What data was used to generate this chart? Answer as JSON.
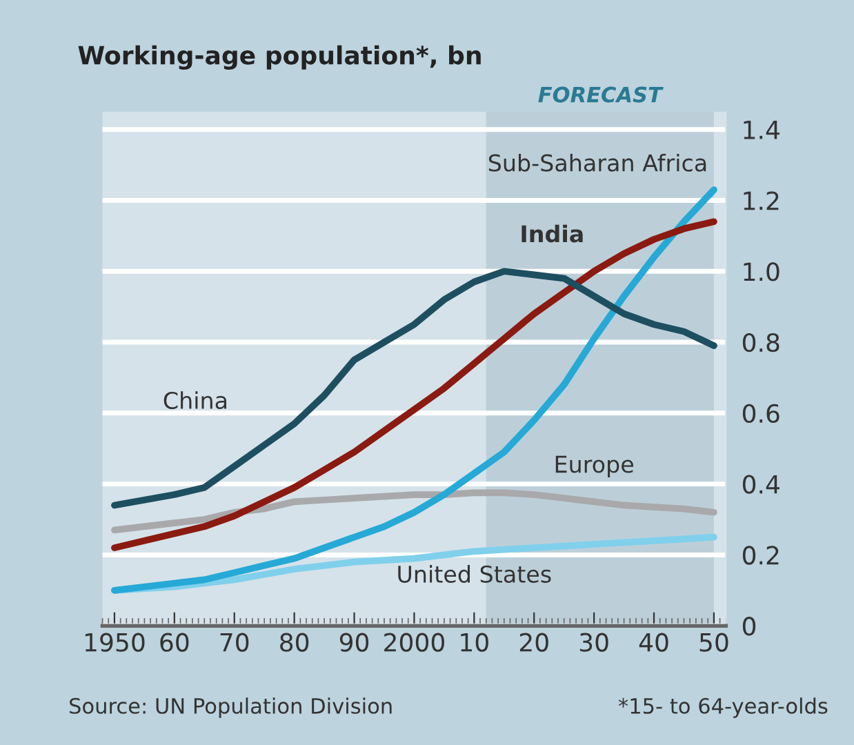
{
  "chart_data": {
    "type": "line",
    "title": "Working-age population*, bn",
    "x": [
      1950,
      1960,
      1965,
      1970,
      1975,
      1980,
      1985,
      1990,
      1995,
      2000,
      2005,
      2010,
      2015,
      2020,
      2025,
      2030,
      2035,
      2040,
      2045,
      2050
    ],
    "series": [
      {
        "name": "China",
        "color": "#1d4f61",
        "values": [
          0.34,
          0.37,
          0.39,
          0.45,
          0.51,
          0.57,
          0.65,
          0.75,
          0.8,
          0.85,
          0.92,
          0.97,
          1.0,
          0.99,
          0.98,
          0.93,
          0.88,
          0.85,
          0.83,
          0.79
        ]
      },
      {
        "name": "India",
        "color": "#8b1a10",
        "values": [
          0.22,
          0.26,
          0.28,
          0.31,
          0.35,
          0.39,
          0.44,
          0.49,
          0.55,
          0.61,
          0.67,
          0.74,
          0.81,
          0.88,
          0.94,
          1.0,
          1.05,
          1.09,
          1.12,
          1.14
        ]
      },
      {
        "name": "Sub-Saharan Africa",
        "color": "#26a9d6",
        "values": [
          0.1,
          0.12,
          0.13,
          0.15,
          0.17,
          0.19,
          0.22,
          0.25,
          0.28,
          0.32,
          0.37,
          0.43,
          0.49,
          0.58,
          0.68,
          0.81,
          0.93,
          1.04,
          1.14,
          1.23
        ]
      },
      {
        "name": "Europe",
        "color": "#a9a9ab",
        "values": [
          0.27,
          0.29,
          0.3,
          0.32,
          0.33,
          0.35,
          0.355,
          0.36,
          0.365,
          0.37,
          0.37,
          0.375,
          0.375,
          0.37,
          0.36,
          0.35,
          0.34,
          0.335,
          0.33,
          0.32
        ]
      },
      {
        "name": "United States",
        "color": "#80d0ec",
        "values": [
          0.1,
          0.11,
          0.12,
          0.13,
          0.145,
          0.16,
          0.17,
          0.18,
          0.185,
          0.19,
          0.2,
          0.21,
          0.215,
          0.22,
          0.225,
          0.23,
          0.235,
          0.24,
          0.245,
          0.25
        ]
      }
    ],
    "xlim": [
      1948,
      2052
    ],
    "xticks": [
      1950,
      {
        "value": 1960,
        "label": "60"
      },
      {
        "value": 1970,
        "label": "70"
      },
      {
        "value": 1980,
        "label": "80"
      },
      {
        "value": 1990,
        "label": "90"
      },
      2000,
      {
        "value": 2010,
        "label": "10"
      },
      {
        "value": 2020,
        "label": "20"
      },
      {
        "value": 2030,
        "label": "30"
      },
      {
        "value": 2040,
        "label": "40"
      },
      {
        "value": 2050,
        "label": "50"
      }
    ],
    "ylim": [
      0,
      1.45
    ],
    "yticks": [
      0,
      0.2,
      0.4,
      0.6,
      0.8,
      {
        "value": 1,
        "label": "1.0"
      },
      1.2,
      1.4
    ],
    "grid": "y",
    "bands": [
      {
        "axis": "x",
        "from": 2012,
        "to": 2050,
        "label": "FORECAST",
        "color": "#bccfd9"
      }
    ],
    "annotations": [
      "Source: UN Population Division",
      "*15- to 64-year-olds"
    ]
  }
}
